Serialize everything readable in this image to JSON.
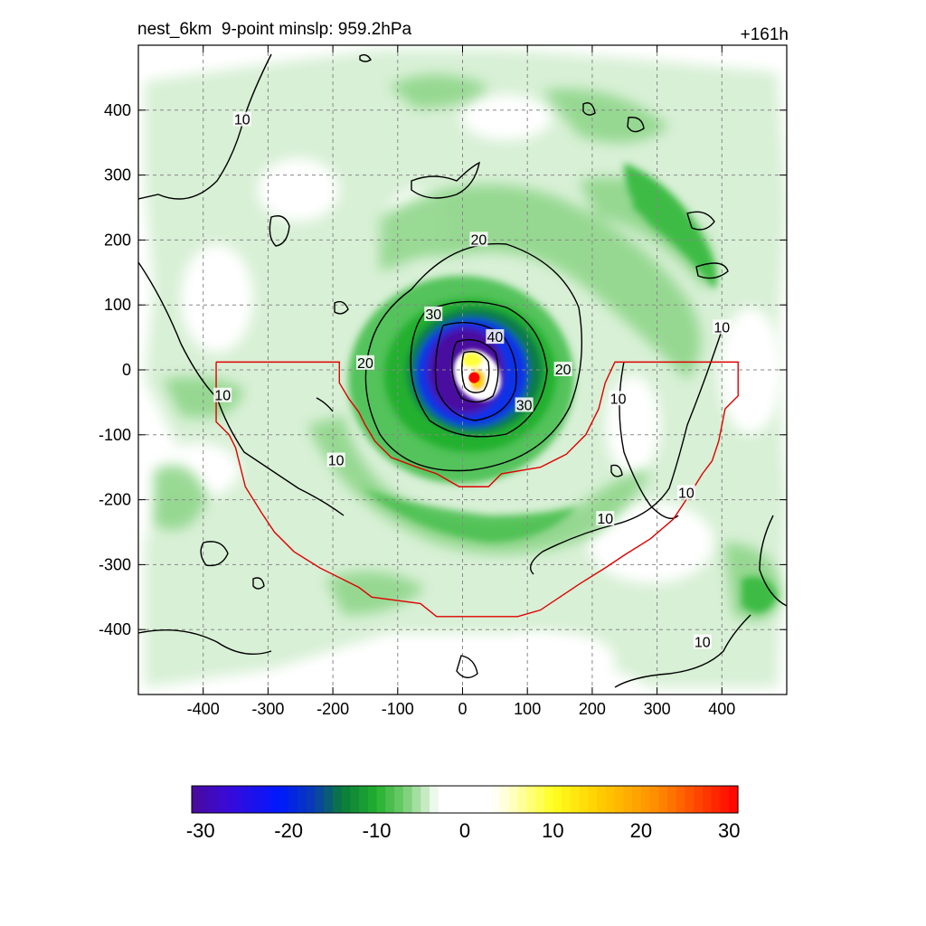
{
  "title": {
    "left": "nest_6km  9-point minslp: 959.2hPa",
    "right": "+161h"
  },
  "colors": {
    "green_light": "#d8f0d6",
    "green_mid": "#8fd68a",
    "green_dark": "#22b02e",
    "teal": "#0d7a4a",
    "blue": "#1030e8",
    "purple": "#4a0aa0",
    "yellow": "#ffff3a",
    "orange": "#ff9000",
    "red": "#ff0000",
    "box_outline": "#e00000",
    "contour": "#000000",
    "grid": "#888888"
  },
  "chart_data": {
    "type": "contour-map",
    "title": "nest_6km  9-point minslp: 959.2hPa",
    "time_label": "+161h",
    "xlim": [
      -500,
      500
    ],
    "ylim": [
      -500,
      500
    ],
    "x_ticks": [
      -400,
      -300,
      -200,
      -100,
      0,
      100,
      200,
      300,
      400
    ],
    "y_ticks": [
      400,
      300,
      200,
      100,
      0,
      -100,
      -200,
      -300,
      -400
    ],
    "x_tick_labels": [
      "-400",
      "-300",
      "-200",
      "-100",
      "0",
      "100",
      "200",
      "300",
      "400"
    ],
    "y_tick_labels": [
      "400",
      "300",
      "200",
      "100",
      "0",
      "-100",
      "-200",
      "-300",
      "-400"
    ],
    "grid": true,
    "center": {
      "x": 18,
      "y": -12
    },
    "contour_levels": [
      10,
      20,
      30,
      40
    ],
    "contour_labels": [
      {
        "text": "10",
        "x": -340,
        "y": 385
      },
      {
        "text": "20",
        "x": 25,
        "y": 200
      },
      {
        "text": "30",
        "x": -45,
        "y": 85
      },
      {
        "text": "40",
        "x": 50,
        "y": 50
      },
      {
        "text": "20",
        "x": -150,
        "y": 10
      },
      {
        "text": "20",
        "x": 155,
        "y": 0
      },
      {
        "text": "10",
        "x": -370,
        "y": -40
      },
      {
        "text": "10",
        "x": 240,
        "y": -45
      },
      {
        "text": "30",
        "x": 95,
        "y": -55
      },
      {
        "text": "10",
        "x": -195,
        "y": -140
      },
      {
        "text": "10",
        "x": 345,
        "y": -190
      },
      {
        "text": "10",
        "x": 220,
        "y": -230
      },
      {
        "text": "10",
        "x": 400,
        "y": 65
      },
      {
        "text": "10",
        "x": 370,
        "y": -420
      }
    ],
    "red_box": [
      [
        -380,
        12
      ],
      [
        -190,
        12
      ],
      [
        -190,
        -20
      ],
      [
        -175,
        -45
      ],
      [
        -160,
        -65
      ],
      [
        -150,
        -85
      ],
      [
        -135,
        -110
      ],
      [
        -110,
        -135
      ],
      [
        -70,
        -150
      ],
      [
        -40,
        -160
      ],
      [
        -5,
        -180
      ],
      [
        40,
        -180
      ],
      [
        60,
        -160
      ],
      [
        120,
        -150
      ],
      [
        160,
        -130
      ],
      [
        190,
        -100
      ],
      [
        210,
        -60
      ],
      [
        220,
        -20
      ],
      [
        235,
        12
      ],
      [
        425,
        12
      ],
      [
        425,
        -40
      ],
      [
        405,
        -60
      ],
      [
        395,
        -110
      ],
      [
        385,
        -140
      ],
      [
        370,
        -160
      ],
      [
        345,
        -200
      ],
      [
        325,
        -230
      ],
      [
        290,
        -260
      ],
      [
        250,
        -285
      ],
      [
        220,
        -305
      ],
      [
        180,
        -330
      ],
      [
        150,
        -350
      ],
      [
        120,
        -370
      ],
      [
        85,
        -380
      ],
      [
        -40,
        -380
      ],
      [
        -65,
        -360
      ],
      [
        -140,
        -350
      ],
      [
        -160,
        -335
      ],
      [
        -220,
        -305
      ],
      [
        -260,
        -280
      ],
      [
        -290,
        -250
      ],
      [
        -310,
        -220
      ],
      [
        -335,
        -180
      ],
      [
        -340,
        -160
      ],
      [
        -350,
        -120
      ],
      [
        -360,
        -100
      ],
      [
        -380,
        -80
      ],
      [
        -380,
        12
      ]
    ],
    "colorbar": {
      "ticks": [
        -30,
        -20,
        -10,
        0,
        10,
        20,
        30
      ],
      "tick_labels": [
        "-30",
        "-20",
        "-10",
        "0",
        "10",
        "20",
        "30"
      ],
      "range": [
        -31,
        31
      ],
      "step": 2,
      "stops": [
        {
          "value": -31,
          "color": "#4a0a9a"
        },
        {
          "value": -27,
          "color": "#3a0ad8"
        },
        {
          "value": -21,
          "color": "#0018ff"
        },
        {
          "value": -17,
          "color": "#0a3eb0"
        },
        {
          "value": -14,
          "color": "#0a7a3a"
        },
        {
          "value": -10,
          "color": "#22b02e"
        },
        {
          "value": -7,
          "color": "#70cc6c"
        },
        {
          "value": -4,
          "color": "#d8f0d6"
        },
        {
          "value": -3,
          "color": "#ffffff"
        },
        {
          "value": 3,
          "color": "#ffffff"
        },
        {
          "value": 5,
          "color": "#ffffd0"
        },
        {
          "value": 10,
          "color": "#ffff20"
        },
        {
          "value": 15,
          "color": "#ffd000"
        },
        {
          "value": 22,
          "color": "#ff8a00"
        },
        {
          "value": 31,
          "color": "#ff0000"
        }
      ]
    }
  }
}
